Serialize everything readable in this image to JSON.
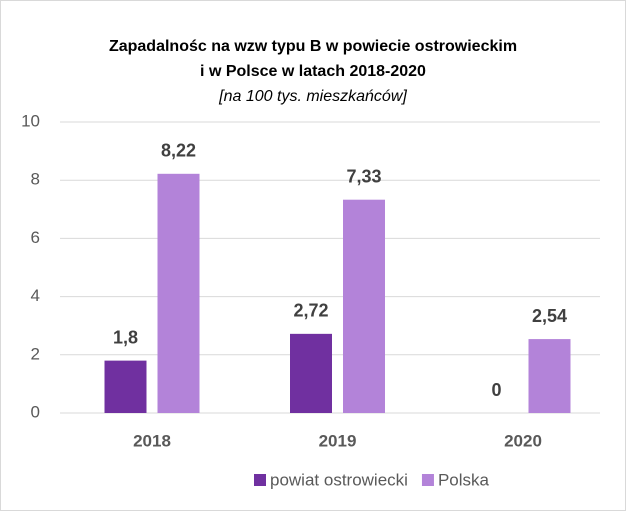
{
  "chart_data": {
    "type": "bar",
    "title": [
      "Zapadalnośc na wzw typu B w powiecie ostrowieckim",
      "i w Polsce w latach 2018-2020"
    ],
    "subtitle": "[na 100 tys. mieszkańców]",
    "categories": [
      "2018",
      "2019",
      "2020"
    ],
    "series": [
      {
        "name": "powiat ostrowiecki",
        "color": "#7030a0",
        "values": [
          1.8,
          2.72,
          0
        ],
        "value_labels": [
          "1,8",
          "2,72",
          "0"
        ]
      },
      {
        "name": "Polska",
        "color": "#b383d9",
        "values": [
          8.22,
          7.33,
          2.54
        ],
        "value_labels": [
          "8,22",
          "7,33",
          "2,54"
        ]
      }
    ],
    "ylim": [
      0,
      10
    ],
    "yticks": [
      0,
      2,
      4,
      6,
      8,
      10
    ],
    "grid": true,
    "legend": "bottom"
  }
}
